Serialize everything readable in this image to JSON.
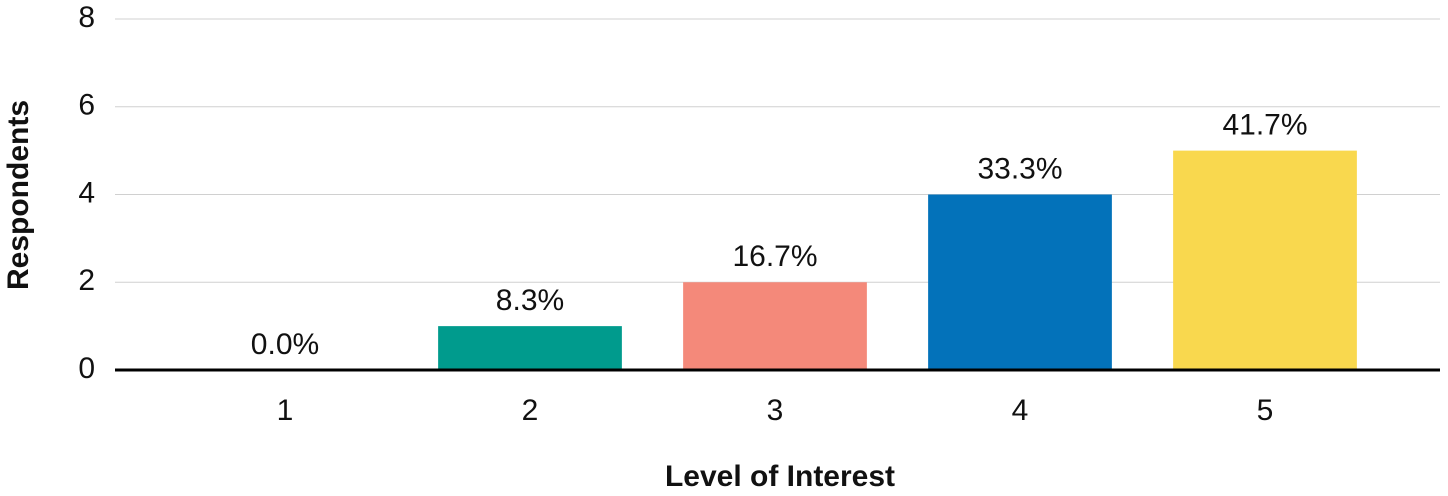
{
  "chart_data": {
    "type": "bar",
    "x_label": "Level of Interest",
    "y_label": "Respondents",
    "categories": [
      "1",
      "2",
      "3",
      "4",
      "5"
    ],
    "values": [
      0,
      1,
      2,
      4,
      5
    ],
    "value_labels": [
      "0.0%",
      "8.3%",
      "16.7%",
      "33.3%",
      "41.7%"
    ],
    "colors": [
      "#009b8d",
      "#009b8d",
      "#f4897a",
      "#0372ba",
      "#f9d84e"
    ],
    "ylim": [
      0,
      8
    ],
    "yticks": [
      0,
      2,
      4,
      6,
      8
    ],
    "grid": true
  }
}
